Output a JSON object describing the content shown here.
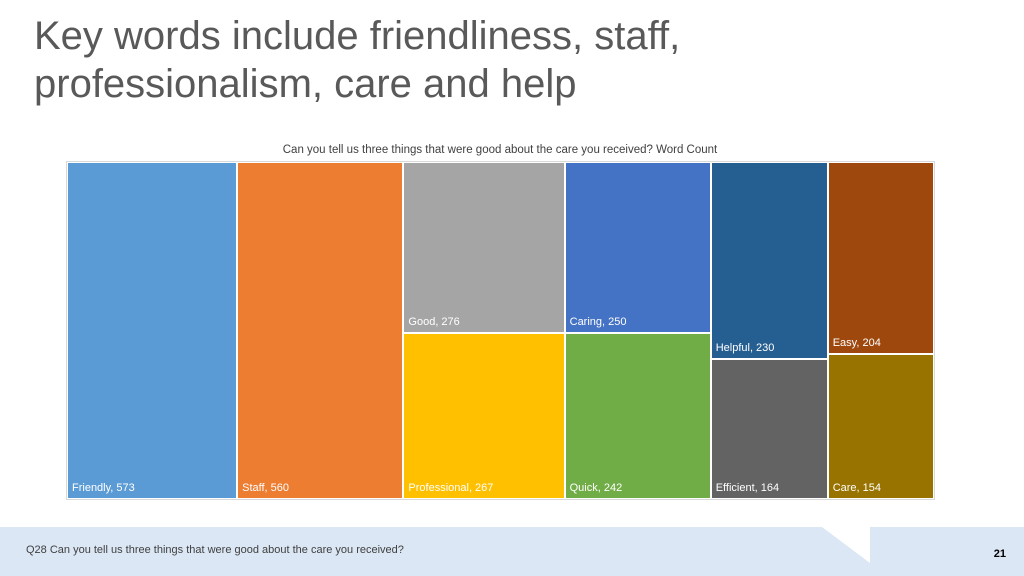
{
  "slide": {
    "title": "Key words include friendliness, staff, professionalism, care and help",
    "footnote": "Q28 Can you tell us three things that were good about the care you received?",
    "page_number": "21"
  },
  "chart_data": {
    "type": "treemap",
    "title": "Can you tell us three things that were good about the care you received? Word Count",
    "items": [
      {
        "name": "Friendly",
        "value": 573,
        "label": "Friendly, 573",
        "color": "#5b9bd5"
      },
      {
        "name": "Staff",
        "value": 560,
        "label": "Staff, 560",
        "color": "#ed7d31"
      },
      {
        "name": "Good",
        "value": 276,
        "label": "Good, 276",
        "color": "#a5a5a5"
      },
      {
        "name": "Professional",
        "value": 267,
        "label": "Professional, 267",
        "color": "#ffc000"
      },
      {
        "name": "Caring",
        "value": 250,
        "label": "Caring, 250",
        "color": "#4472c4"
      },
      {
        "name": "Quick",
        "value": 242,
        "label": "Quick, 242",
        "color": "#70ad47"
      },
      {
        "name": "Helpful",
        "value": 230,
        "label": "Helpful, 230",
        "color": "#255e91"
      },
      {
        "name": "Easy",
        "value": 204,
        "label": "Easy, 204",
        "color": "#9e480e"
      },
      {
        "name": "Efficient",
        "value": 164,
        "label": "Efficient, 164",
        "color": "#636363"
      },
      {
        "name": "Care",
        "value": 154,
        "label": "Care, 154",
        "color": "#997300"
      }
    ]
  }
}
